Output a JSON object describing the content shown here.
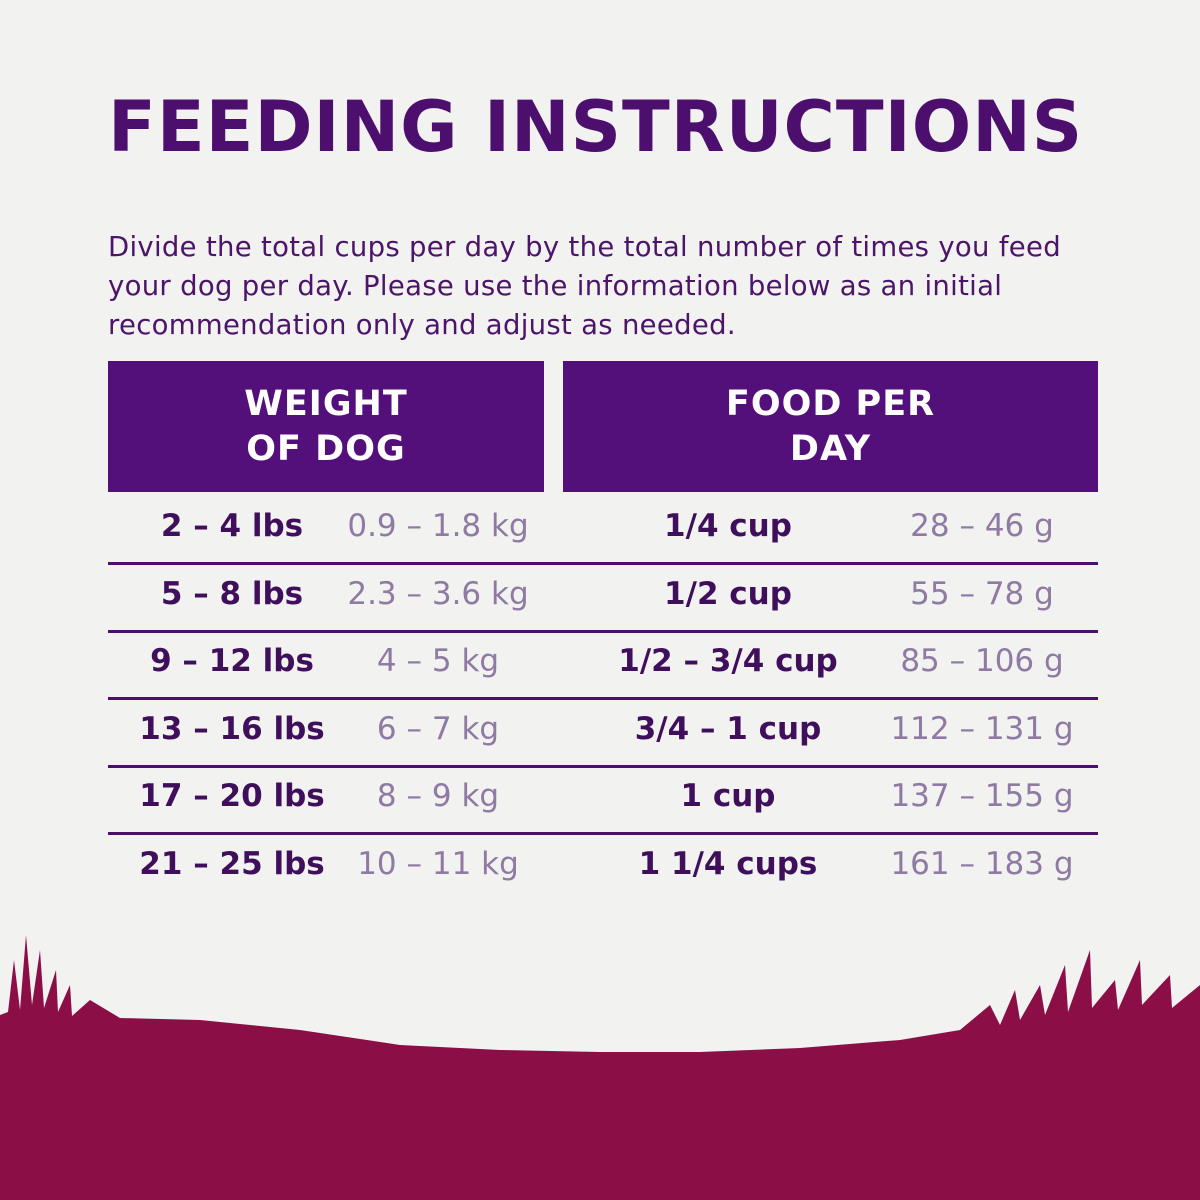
{
  "header": {
    "title": "FEEDING INSTRUCTIONS",
    "intro": "Divide the total cups per day by the total number of times you feed your dog per day. Please use the information below as an initial recommendation only and adjust as needed."
  },
  "table": {
    "columns": [
      "WEIGHT OF DOG",
      "FOOD PER DAY"
    ],
    "rows": [
      [
        "2 – 4 lbs",
        "0.9 – 1.8 kg",
        "1/4 cup",
        "28 – 46 g"
      ],
      [
        "5 – 8 lbs",
        "2.3 – 3.6 kg",
        "1/2 cup",
        "55 – 78 g"
      ],
      [
        "9 – 12 lbs",
        "4 – 5 kg",
        "1/2 – 3/4 cup",
        "85 – 106 g"
      ],
      [
        "13 – 16 lbs",
        "6 – 7 kg",
        "3/4 – 1 cup",
        "112 – 131 g"
      ],
      [
        "17 – 20 lbs",
        "8 – 9 kg",
        "1 cup",
        "137 – 155 g"
      ],
      [
        "21 – 25 lbs",
        "10 – 11 kg",
        "1 1/4 cups",
        "161 – 183 g"
      ]
    ]
  }
}
